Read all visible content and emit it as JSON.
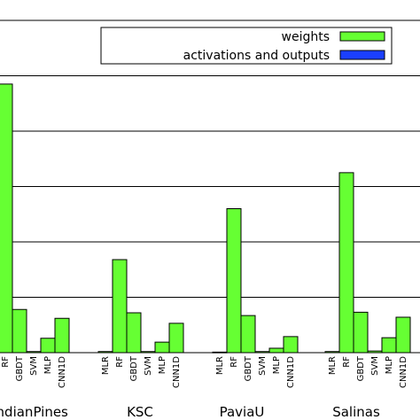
{
  "chart_data": {
    "type": "bar",
    "groups": [
      {
        "name": "IndianPines",
        "models": [
          "RF",
          "GBDT",
          "SVM",
          "MLP",
          "CNN1D"
        ],
        "values": [
          4.85,
          0.78,
          0.02,
          0.26,
          0.62
        ]
      },
      {
        "name": "KSC",
        "models": [
          "MLR",
          "RF",
          "GBDT",
          "SVM",
          "MLP",
          "CNN1D"
        ],
        "values": [
          0.02,
          1.68,
          0.72,
          0.02,
          0.19,
          0.53
        ]
      },
      {
        "name": "PaviaU",
        "models": [
          "MLR",
          "RF",
          "GBDT",
          "SVM",
          "MLP",
          "CNN1D"
        ],
        "values": [
          0.01,
          2.6,
          0.67,
          0.02,
          0.08,
          0.29
        ]
      },
      {
        "name": "Salinas",
        "models": [
          "MLR",
          "RF",
          "GBDT",
          "SVM",
          "MLP",
          "CNN1D"
        ],
        "values": [
          0.02,
          3.25,
          0.73,
          0.03,
          0.27,
          0.64
        ]
      }
    ],
    "series": [
      {
        "name": "weights",
        "color": "#66ff33"
      },
      {
        "name": "activations and outputs",
        "color": "#1a3fff"
      }
    ],
    "ylim": [
      0,
      6.5
    ],
    "gridlines": [
      1,
      2,
      3,
      4,
      5,
      6
    ],
    "grid": "horizontal",
    "legend_position": "top-right",
    "title": "",
    "xlabel": "",
    "ylabel": ""
  }
}
